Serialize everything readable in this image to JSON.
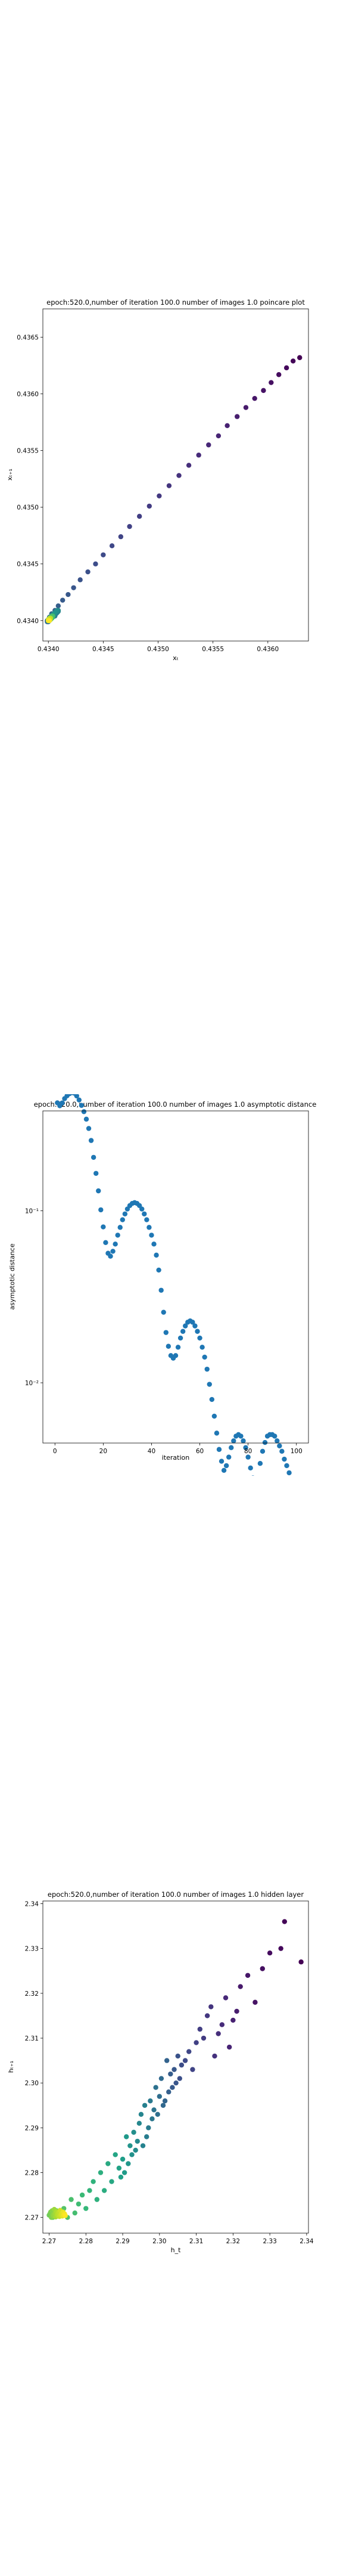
{
  "charts": [
    {
      "id": "poincare",
      "type": "scatter",
      "title": "epoch:520.0,number of iteration 100.0 number of images 1.0 poincare plot",
      "xlabel": "xₜ",
      "ylabel": "xₜ₊₁",
      "xlim": [
        0.43395,
        0.43637
      ],
      "ylim": [
        0.43382,
        0.43675
      ],
      "xticks": [
        0.434,
        0.4345,
        0.435,
        0.4355,
        0.436
      ],
      "xtick_labels": [
        "0.4340",
        "0.4345",
        "0.4350",
        "0.4355",
        "0.4360"
      ],
      "yticks": [
        0.434,
        0.4345,
        0.435,
        0.4355,
        0.436,
        0.4365
      ],
      "ytick_labels": [
        "0.4340",
        "0.4345",
        "0.4350",
        "0.4355",
        "0.4360",
        "0.4365"
      ],
      "colormap": "viridis",
      "chart_data": {
        "type": "scatter",
        "x": [
          0.43629,
          0.43623,
          0.43617,
          0.4361,
          0.43603,
          0.43596,
          0.43588,
          0.4358,
          0.43572,
          0.43563,
          0.43555,
          0.43546,
          0.43537,
          0.43528,
          0.43519,
          0.4351,
          0.43501,
          0.43492,
          0.43483,
          0.43474,
          0.43466,
          0.43458,
          0.4345,
          0.43443,
          0.43436,
          0.43429,
          0.43423,
          0.43418,
          0.43413,
          0.43409,
          0.43406,
          0.43403,
          0.43401,
          0.434,
          0.43399,
          0.43399,
          0.434,
          0.43401,
          0.43402,
          0.43403,
          0.43404,
          0.43406,
          0.43407,
          0.43408,
          0.43409,
          0.43409,
          0.43409,
          0.43409,
          0.43408,
          0.43407,
          0.43406,
          0.43405,
          0.43404,
          0.43403,
          0.43402,
          0.43401,
          0.434,
          0.434,
          0.434,
          0.434,
          0.43401,
          0.43402,
          0.43403,
          0.43403,
          0.43404,
          0.43404,
          0.43404,
          0.43404,
          0.43404,
          0.43403,
          0.43403,
          0.43402,
          0.43401,
          0.43401,
          0.434,
          0.434,
          0.434,
          0.434,
          0.434,
          0.43401,
          0.43401,
          0.43402,
          0.43402,
          0.43402,
          0.43402,
          0.43402,
          0.43402,
          0.43402,
          0.43401,
          0.43401,
          0.43401,
          0.434,
          0.434,
          0.434,
          0.434,
          0.434,
          0.434,
          0.434,
          0.43401
        ],
        "y": [
          0.43632,
          0.43629,
          0.43623,
          0.43617,
          0.4361,
          0.43603,
          0.43596,
          0.43588,
          0.4358,
          0.43572,
          0.43563,
          0.43555,
          0.43546,
          0.43537,
          0.43528,
          0.43519,
          0.4351,
          0.43501,
          0.43492,
          0.43483,
          0.43474,
          0.43466,
          0.43458,
          0.4345,
          0.43443,
          0.43436,
          0.43429,
          0.43423,
          0.43418,
          0.43413,
          0.43409,
          0.43406,
          0.43403,
          0.43401,
          0.434,
          0.43399,
          0.43399,
          0.434,
          0.43401,
          0.43402,
          0.43403,
          0.43404,
          0.43406,
          0.43407,
          0.43408,
          0.43409,
          0.43409,
          0.43409,
          0.43409,
          0.43408,
          0.43407,
          0.43406,
          0.43405,
          0.43404,
          0.43403,
          0.43402,
          0.43401,
          0.434,
          0.434,
          0.434,
          0.434,
          0.43401,
          0.43402,
          0.43403,
          0.43403,
          0.43404,
          0.43404,
          0.43404,
          0.43404,
          0.43404,
          0.43403,
          0.43403,
          0.43402,
          0.43401,
          0.43401,
          0.434,
          0.434,
          0.434,
          0.434,
          0.434,
          0.43401,
          0.43401,
          0.43402,
          0.43402,
          0.43402,
          0.43402,
          0.43402,
          0.43402,
          0.43402,
          0.43401,
          0.43401,
          0.43401,
          0.434,
          0.434,
          0.434,
          0.434,
          0.434,
          0.434,
          0.434
        ]
      }
    },
    {
      "id": "asymptotic",
      "type": "scatter",
      "title": "epoch:520.0,number of iteration 100.0  number of images 1.0 asymptotic distance",
      "xlabel": "iteration",
      "ylabel": "asymptotic distance",
      "xlim": [
        -5,
        105
      ],
      "ylim_log10": [
        -2.35,
        -0.42
      ],
      "log_y": true,
      "xticks": [
        0,
        20,
        40,
        60,
        80,
        100
      ],
      "xtick_labels": [
        "0",
        "20",
        "40",
        "60",
        "80",
        "100"
      ],
      "yticks": [
        -1,
        -2
      ],
      "ytick_labels": [
        "10⁻¹",
        "10⁻²"
      ],
      "color": "#1f77b4",
      "chart_data": {
        "type": "scatter",
        "log_y": true,
        "x": [
          0,
          1,
          2,
          3,
          4,
          5,
          6,
          7,
          8,
          9,
          10,
          11,
          12,
          13,
          14,
          15,
          16,
          17,
          18,
          19,
          20,
          21,
          22,
          23,
          24,
          25,
          26,
          27,
          28,
          29,
          30,
          31,
          32,
          33,
          34,
          35,
          36,
          37,
          38,
          39,
          40,
          41,
          42,
          43,
          44,
          45,
          46,
          47,
          48,
          49,
          50,
          51,
          52,
          53,
          54,
          55,
          56,
          57,
          58,
          59,
          60,
          61,
          62,
          63,
          64,
          65,
          66,
          67,
          68,
          69,
          70,
          71,
          72,
          73,
          74,
          75,
          76,
          77,
          78,
          79,
          80,
          81,
          82,
          83,
          84,
          85,
          86,
          87,
          88,
          89,
          90,
          91,
          92,
          93,
          94,
          95,
          96,
          97,
          98,
          99,
          100
        ],
        "y": [
          0.5012,
          0.4236,
          0.4073,
          0.4229,
          0.4481,
          0.4654,
          0.4786,
          0.4851,
          0.4817,
          0.4645,
          0.4401,
          0.4093,
          0.3762,
          0.3404,
          0.3005,
          0.2559,
          0.2042,
          0.1648,
          0.1304,
          0.1012,
          0.0805,
          0.0653,
          0.0566,
          0.0544,
          0.0581,
          0.064,
          0.0721,
          0.08,
          0.0886,
          0.0958,
          0.1023,
          0.1071,
          0.1102,
          0.1114,
          0.1102,
          0.1071,
          0.1023,
          0.0958,
          0.0886,
          0.08,
          0.0721,
          0.064,
          0.0552,
          0.0452,
          0.0345,
          0.0257,
          0.0196,
          0.0163,
          0.0144,
          0.0139,
          0.0144,
          0.0161,
          0.0182,
          0.0199,
          0.0214,
          0.0225,
          0.0229,
          0.0225,
          0.0214,
          0.0199,
          0.0182,
          0.0161,
          0.0141,
          0.012,
          0.0098,
          0.008,
          0.0064,
          0.0051,
          0.0041,
          0.0035,
          0.0031,
          0.0033,
          0.0037,
          0.0042,
          0.0046,
          0.0049,
          0.005,
          0.0049,
          0.0046,
          0.0042,
          0.0037,
          0.0032,
          0.0028,
          0.0024,
          0.0021,
          0.0034,
          0.004,
          0.0045,
          0.0049,
          0.005,
          0.005,
          0.0049,
          0.0046,
          0.0043,
          0.004,
          0.0036,
          0.0033,
          0.003,
          0.0027,
          0.0024,
          0.0022
        ]
      }
    },
    {
      "id": "hidden",
      "type": "scatter",
      "title": "epoch:520.0,number of iteration 100.0  number of images 1.0 hidden layer",
      "xlabel": "h_t",
      "ylabel": "hₜ₊₁",
      "xlim": [
        2.2683,
        2.3405
      ],
      "ylim": [
        2.2665,
        2.3406
      ],
      "xticks": [
        2.27,
        2.28,
        2.29,
        2.3,
        2.31,
        2.32,
        2.33,
        2.34
      ],
      "xtick_labels": [
        "2.27",
        "2.28",
        "2.29",
        "2.30",
        "2.31",
        "2.32",
        "2.33",
        "2.34"
      ],
      "yticks": [
        2.27,
        2.28,
        2.29,
        2.3,
        2.31,
        2.32,
        2.33,
        2.34
      ],
      "ytick_labels": [
        "2.27",
        "2.28",
        "2.29",
        "2.30",
        "2.31",
        "2.32",
        "2.33",
        "2.34"
      ],
      "colormap": "viridis",
      "chart_data": {
        "type": "scatter",
        "x": [
          2.3385,
          2.334,
          2.333,
          2.33,
          2.328,
          2.326,
          2.324,
          2.322,
          2.321,
          2.32,
          2.319,
          2.318,
          2.317,
          2.316,
          2.315,
          2.314,
          2.313,
          2.312,
          2.311,
          2.31,
          2.309,
          2.308,
          2.307,
          2.306,
          2.3055,
          2.305,
          2.3045,
          2.304,
          2.3035,
          2.303,
          2.3025,
          2.302,
          2.3015,
          2.301,
          2.3005,
          2.3,
          2.2995,
          2.299,
          2.2985,
          2.298,
          2.2975,
          2.297,
          2.2965,
          2.296,
          2.2955,
          2.295,
          2.2945,
          2.294,
          2.2935,
          2.293,
          2.2925,
          2.292,
          2.2915,
          2.291,
          2.2905,
          2.29,
          2.2895,
          2.289,
          2.288,
          2.287,
          2.286,
          2.285,
          2.284,
          2.283,
          2.282,
          2.281,
          2.28,
          2.279,
          2.278,
          2.277,
          2.276,
          2.275,
          2.274,
          2.273,
          2.272,
          2.271,
          2.2705,
          2.27,
          2.2702,
          2.2704,
          2.2706,
          2.2708,
          2.271,
          2.2712,
          2.2714,
          2.2716,
          2.2718,
          2.272,
          2.2722,
          2.2724,
          2.2726,
          2.2728,
          2.273,
          2.2732,
          2.2734,
          2.2736,
          2.2738,
          2.274,
          2.2742,
          2.2744
        ],
        "y": [
          2.327,
          2.336,
          2.33,
          2.329,
          2.3255,
          2.318,
          2.324,
          2.3215,
          2.316,
          2.314,
          2.308,
          2.319,
          2.313,
          2.311,
          2.306,
          2.317,
          2.315,
          2.31,
          2.312,
          2.309,
          2.303,
          2.307,
          2.305,
          2.304,
          2.301,
          2.306,
          2.3,
          2.303,
          2.299,
          2.302,
          2.298,
          2.305,
          2.296,
          2.295,
          2.301,
          2.297,
          2.293,
          2.299,
          2.294,
          2.292,
          2.296,
          2.29,
          2.288,
          2.295,
          2.286,
          2.293,
          2.291,
          2.287,
          2.285,
          2.289,
          2.284,
          2.286,
          2.282,
          2.288,
          2.28,
          2.283,
          2.279,
          2.281,
          2.284,
          2.278,
          2.282,
          2.276,
          2.28,
          2.274,
          2.278,
          2.276,
          2.272,
          2.275,
          2.273,
          2.271,
          2.274,
          2.27,
          2.272,
          2.2705,
          2.2715,
          2.27,
          2.271,
          2.2705,
          2.2708,
          2.2712,
          2.27,
          2.2715,
          2.2706,
          2.2703,
          2.2718,
          2.2709,
          2.2701,
          2.2713,
          2.2707,
          2.2704,
          2.2711,
          2.2702,
          2.2716,
          2.2706,
          2.2709,
          2.2703,
          2.2712,
          2.2705,
          2.2708,
          2.2704
        ]
      }
    }
  ]
}
